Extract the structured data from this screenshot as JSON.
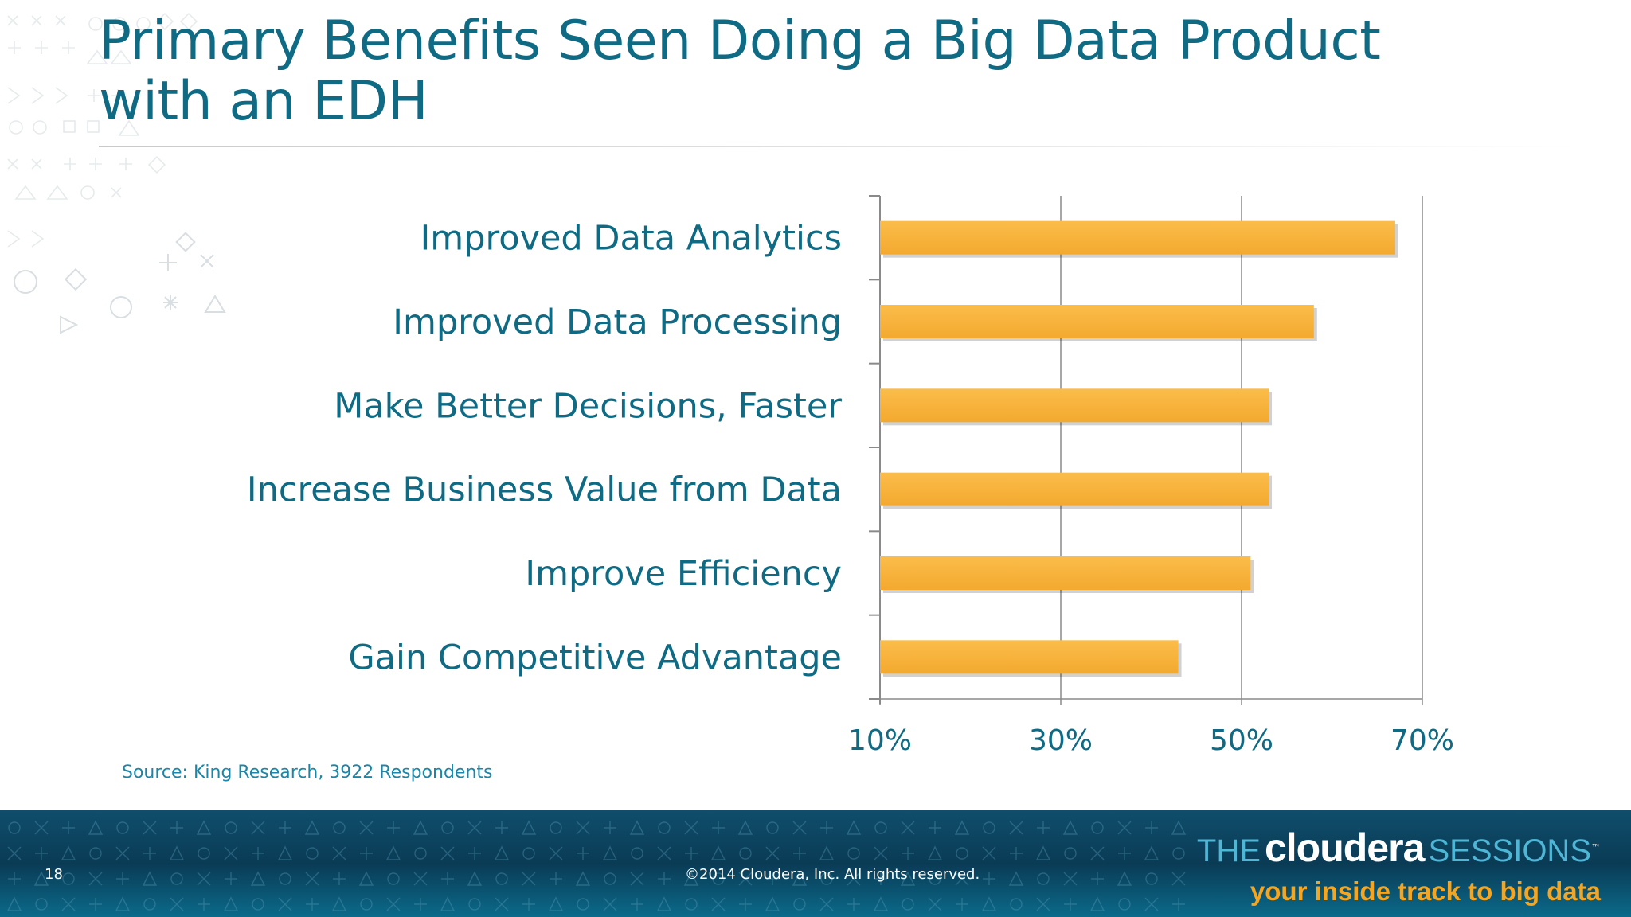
{
  "slide": {
    "title_line1": "Primary Benefits Seen Doing a Big Data Product",
    "title_line2": "with an EDH",
    "source": "Source: King Research, 3922 Respondents",
    "page_number": "18",
    "copyright": "©2014 Cloudera, Inc. All rights reserved."
  },
  "brand": {
    "the": "THE",
    "name": "cloudera",
    "sessions": "SESSIONS",
    "tm": "™",
    "tagline": "your inside track to big data"
  },
  "colors": {
    "title": "#0f6a84",
    "bar": "#f9b43c",
    "tagline": "#f4a623",
    "footer": "#0a3b55"
  },
  "chart_data": {
    "type": "bar",
    "orientation": "horizontal",
    "categories": [
      "Improved Data Analytics",
      "Improved Data Processing",
      "Make Better Decisions, Faster",
      "Increase Business Value from Data",
      "Improve Efficiency",
      "Gain Competitive Advantage"
    ],
    "values": [
      67,
      58,
      53,
      53,
      51,
      43
    ],
    "unit": "%",
    "xlim": [
      10,
      70
    ],
    "xticks": [
      "10%",
      "30%",
      "50%",
      "70%"
    ],
    "xtick_values": [
      10,
      30,
      50,
      70
    ],
    "grid": true
  }
}
